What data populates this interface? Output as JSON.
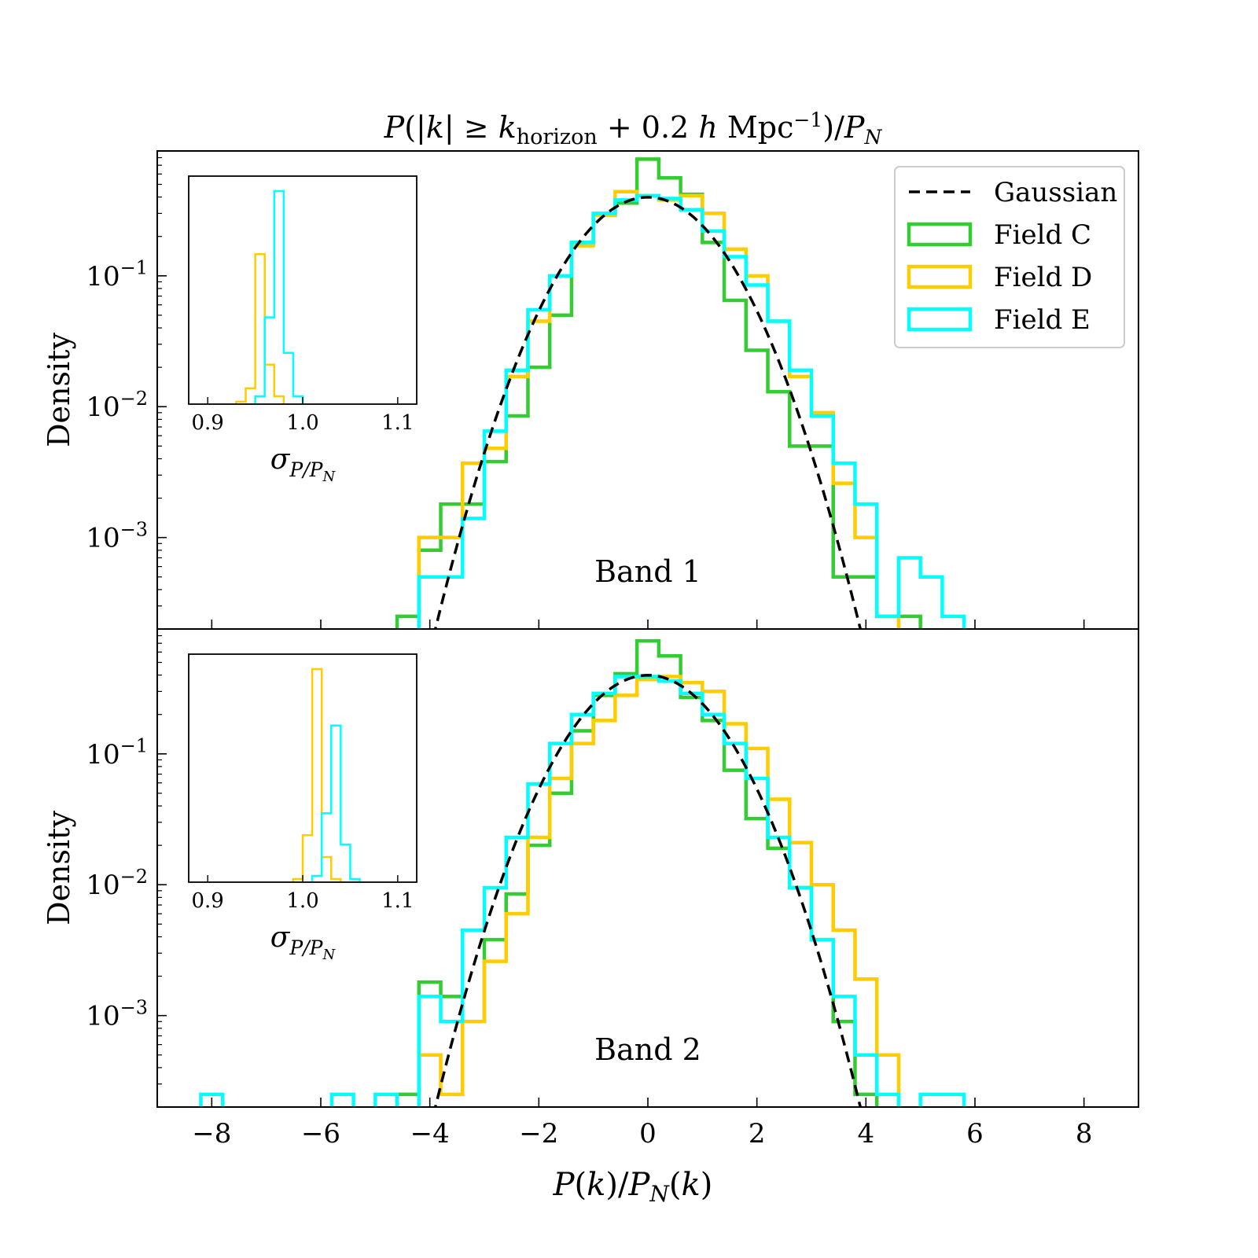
{
  "figure": {
    "title": "P(|k| ≥ k_horizon + 0.2 h Mpc⁻¹)/P_N",
    "xlabel": "P(k)/P_N(k)",
    "ylabel": "Density",
    "inset_xlabel": "σ_{P/P_N}",
    "colors": {
      "gaussian": "#000000",
      "Field C": "#33cc33",
      "Field D": "#ffcc00",
      "Field E": "#00ffff"
    }
  },
  "legend": {
    "location": "upper right of top panel",
    "items": [
      {
        "label": "Gaussian",
        "style": "dashed",
        "color": "#000000"
      },
      {
        "label": "Field C",
        "style": "box",
        "color": "#33cc33"
      },
      {
        "label": "Field D",
        "style": "box",
        "color": "#ffcc00"
      },
      {
        "label": "Field E",
        "style": "box",
        "color": "#00ffff"
      }
    ]
  },
  "chart_data": [
    {
      "type": "histogram",
      "panel": "top",
      "annotation": "Band 1",
      "ylabel": "Density",
      "yscale": "log",
      "xlim": [
        -9,
        9
      ],
      "ylim": [
        0.0002,
        0.9
      ],
      "ytick_labels": [
        "10^{-1}",
        "10^{-2}",
        "10^{-3}"
      ],
      "xticks": [
        -8,
        -6,
        -4,
        -2,
        0,
        2,
        4,
        6,
        8
      ],
      "gaussian": {
        "mean": 0,
        "sigma": 1,
        "label": "Gaussian"
      },
      "series": [
        {
          "name": "Field C",
          "color": "#33cc33",
          "edges": [
            -4.6,
            -4.2,
            -3.8,
            -3.4,
            -3.0,
            -2.6,
            -2.2,
            -1.8,
            -1.4,
            -1.0,
            -0.6,
            -0.2,
            0.2,
            0.6,
            1.0,
            1.4,
            1.8,
            2.2,
            2.6,
            3.0,
            3.4,
            3.8,
            4.2,
            4.6,
            5.0
          ],
          "values": [
            0.00025,
            0.0008,
            0.0018,
            0.0018,
            0.0038,
            0.0085,
            0.02,
            0.05,
            0.18,
            0.29,
            0.36,
            0.78,
            0.56,
            0.42,
            0.18,
            0.065,
            0.027,
            0.013,
            0.005,
            0.005,
            0.0005,
            0.0005,
            0.00025,
            0.00025
          ]
        },
        {
          "name": "Field D",
          "color": "#ffcc00",
          "edges": [
            -4.2,
            -3.8,
            -3.4,
            -3.0,
            -2.6,
            -2.2,
            -1.8,
            -1.4,
            -1.0,
            -0.6,
            -0.2,
            0.2,
            0.6,
            1.0,
            1.4,
            1.8,
            2.2,
            2.6,
            3.0,
            3.4,
            3.8,
            4.2,
            4.6
          ],
          "values": [
            0.001,
            0.001,
            0.0037,
            0.0048,
            0.017,
            0.045,
            0.1,
            0.17,
            0.29,
            0.44,
            0.41,
            0.38,
            0.41,
            0.3,
            0.16,
            0.1,
            0.045,
            0.017,
            0.009,
            0.0026,
            0.001,
            0.00025
          ]
        },
        {
          "name": "Field E",
          "color": "#00ffff",
          "edges": [
            -4.2,
            -3.8,
            -3.4,
            -3.0,
            -2.6,
            -2.2,
            -1.8,
            -1.4,
            -1.0,
            -0.6,
            -0.2,
            0.2,
            0.6,
            1.0,
            1.4,
            1.8,
            2.2,
            2.6,
            3.0,
            3.4,
            3.8,
            4.2,
            4.6,
            5.0,
            5.4,
            5.8
          ],
          "values": [
            0.0005,
            0.0005,
            0.0014,
            0.0065,
            0.019,
            0.055,
            0.1,
            0.18,
            0.3,
            0.38,
            0.41,
            0.39,
            0.32,
            0.22,
            0.14,
            0.085,
            0.045,
            0.019,
            0.0085,
            0.0037,
            0.0018,
            0.00025,
            0.0007,
            0.0005,
            0.00025
          ]
        }
      ],
      "inset": {
        "xlabel": "σ_{P/P_N}",
        "xlim": [
          0.88,
          1.12
        ],
        "xticks": [
          0.9,
          1.0,
          1.1
        ],
        "series": [
          {
            "name": "Field D",
            "color": "#ffcc00",
            "edges": [
              0.93,
              0.94,
              0.95,
              0.96,
              0.97,
              0.98
            ],
            "values": [
              0.6,
              4,
              38,
              10,
              2
            ]
          },
          {
            "name": "Field E",
            "color": "#00ffff",
            "edges": [
              0.95,
              0.96,
              0.97,
              0.98,
              0.99,
              1.0
            ],
            "values": [
              2,
              22,
              54,
              13,
              2
            ]
          }
        ]
      }
    },
    {
      "type": "histogram",
      "panel": "bottom",
      "annotation": "Band 2",
      "ylabel": "Density",
      "yscale": "log",
      "xlabel": "P(k)/P_N(k)",
      "xlim": [
        -9,
        9
      ],
      "ylim": [
        0.0002,
        0.9
      ],
      "ytick_labels": [
        "10^{-1}",
        "10^{-2}",
        "10^{-3}"
      ],
      "xticks": [
        -8,
        -6,
        -4,
        -2,
        0,
        2,
        4,
        6,
        8
      ],
      "xtick_labels": [
        "−8",
        "−6",
        "−4",
        "−2",
        "0",
        "2",
        "4",
        "6",
        "8"
      ],
      "gaussian": {
        "mean": 0,
        "sigma": 1,
        "label": "Gaussian"
      },
      "series": [
        {
          "name": "Field C",
          "color": "#33cc33",
          "edges": [
            -4.6,
            -4.2,
            -3.8,
            -3.4,
            -3.0,
            -2.6,
            -2.2,
            -1.8,
            -1.4,
            -1.0,
            -0.6,
            -0.2,
            0.2,
            0.6,
            1.0,
            1.4,
            1.8,
            2.2,
            2.6,
            3.0,
            3.4,
            3.8,
            4.2
          ],
          "values": [
            0.00025,
            0.0018,
            0.0014,
            0.0009,
            0.0038,
            0.0085,
            0.02,
            0.05,
            0.15,
            0.28,
            0.41,
            0.73,
            0.56,
            0.27,
            0.18,
            0.075,
            0.032,
            0.019,
            0.0095,
            0.0038,
            0.0009,
            0.00025
          ]
        },
        {
          "name": "Field D",
          "color": "#ffcc00",
          "edges": [
            -4.2,
            -3.8,
            -3.4,
            -3.0,
            -2.6,
            -2.2,
            -1.8,
            -1.4,
            -1.0,
            -0.6,
            -0.2,
            0.2,
            0.6,
            1.0,
            1.4,
            1.8,
            2.2,
            2.6,
            3.0,
            3.4,
            3.8,
            4.2,
            4.6
          ],
          "values": [
            0.0005,
            0.00025,
            0.0009,
            0.0026,
            0.006,
            0.023,
            0.065,
            0.12,
            0.18,
            0.28,
            0.37,
            0.39,
            0.35,
            0.3,
            0.17,
            0.11,
            0.045,
            0.021,
            0.01,
            0.0045,
            0.0019,
            0.0005
          ]
        },
        {
          "name": "Field E",
          "color": "#00ffff",
          "edges": [
            -8.2,
            -7.8,
            -5.8,
            -5.4,
            -5.0,
            -4.6,
            -4.2,
            -3.8,
            -3.4,
            -3.0,
            -2.6,
            -2.2,
            -1.8,
            -1.4,
            -1.0,
            -0.6,
            -0.2,
            0.2,
            0.6,
            1.0,
            1.4,
            1.8,
            2.2,
            2.6,
            3.0,
            3.4,
            3.8,
            4.2,
            4.6,
            5.0,
            5.4,
            5.8
          ],
          "values": [
            0.00025,
            0,
            0.00025,
            0,
            0.00025,
            0,
            0.0014,
            0.0009,
            0.0045,
            0.0095,
            0.023,
            0.059,
            0.12,
            0.2,
            0.29,
            0.39,
            0.39,
            0.36,
            0.29,
            0.2,
            0.12,
            0.065,
            0.023,
            0.0095,
            0.0038,
            0.0014,
            0.0005,
            0.00025,
            0,
            0.00025,
            0.00025
          ]
        }
      ],
      "inset": {
        "xlabel": "σ_{P/P_N}",
        "xlim": [
          0.88,
          1.12
        ],
        "xticks": [
          0.9,
          1.0,
          1.1
        ],
        "series": [
          {
            "name": "Field D",
            "color": "#ffcc00",
            "edges": [
              0.99,
              1.0,
              1.01,
              1.02,
              1.03,
              1.04
            ],
            "values": [
              1,
              15,
              68,
              8,
              1
            ]
          },
          {
            "name": "Field E",
            "color": "#00ffff",
            "edges": [
              1.01,
              1.02,
              1.03,
              1.04,
              1.05,
              1.06
            ],
            "values": [
              2,
              22,
              50,
              12,
              1
            ]
          }
        ]
      }
    }
  ]
}
